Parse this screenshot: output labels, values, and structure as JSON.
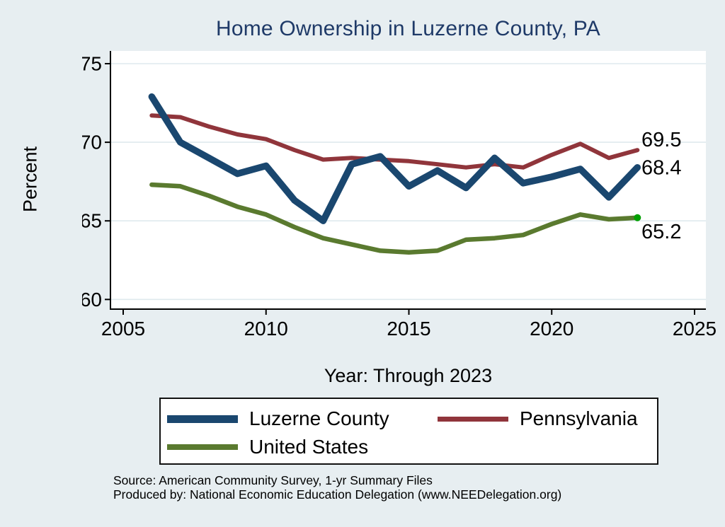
{
  "title": "Home Ownership in Luzerne County, PA",
  "colors": {
    "background": "#e7eef1",
    "plot_background": "#ffffff",
    "grid": "#dfeaee",
    "axis": "#000000",
    "title": "#1f3a68",
    "luzerne_blue": "#1a476f",
    "pennsylvania_red": "#90353b",
    "us_green": "#5a7a2f",
    "end_marker_green": "#00a000"
  },
  "chart_data": {
    "type": "line",
    "title": "Home Ownership in Luzerne County, PA",
    "xlabel": "Year: Through 2023",
    "ylabel": "Percent",
    "x": [
      2006,
      2007,
      2008,
      2009,
      2010,
      2011,
      2012,
      2013,
      2014,
      2015,
      2016,
      2017,
      2018,
      2019,
      2020,
      2021,
      2022,
      2023
    ],
    "xticks": [
      2005,
      2010,
      2015,
      2020,
      2025
    ],
    "yticks": [
      75,
      70,
      65,
      60
    ],
    "xlim": [
      2005,
      2025
    ],
    "ylim": [
      60,
      75
    ],
    "grid": true,
    "legend_position": "bottom",
    "series": [
      {
        "name": "Luzerne County",
        "color": "#1a476f",
        "end_label": "68.4",
        "end_label_offset": 0,
        "values": [
          72.9,
          70.0,
          69.0,
          68.0,
          68.5,
          66.3,
          65.0,
          68.6,
          69.1,
          67.2,
          68.2,
          67.1,
          69.0,
          67.4,
          67.8,
          68.3,
          66.5,
          68.4
        ]
      },
      {
        "name": "Pennsylvania",
        "color": "#90353b",
        "end_label": "69.5",
        "end_label_offset": -15,
        "values": [
          71.7,
          71.6,
          71.0,
          70.5,
          70.2,
          69.5,
          68.9,
          69.0,
          68.9,
          68.8,
          68.6,
          68.4,
          68.6,
          68.4,
          69.2,
          69.9,
          69.0,
          69.5
        ]
      },
      {
        "name": "United States",
        "color": "#5a7a2f",
        "end_label": "65.2",
        "end_label_offset": 19,
        "end_marker_color": "#00a000",
        "values": [
          67.3,
          67.2,
          66.6,
          65.9,
          65.4,
          64.6,
          63.9,
          63.5,
          63.1,
          63.0,
          63.1,
          63.8,
          63.9,
          64.1,
          64.8,
          65.4,
          65.1,
          65.2
        ]
      }
    ]
  },
  "footer": {
    "source": "Source: American Community Survey, 1-yr Summary Files",
    "produced_by": "Produced by: National Economic Education Delegation (www.NEEDelegation.org)"
  }
}
